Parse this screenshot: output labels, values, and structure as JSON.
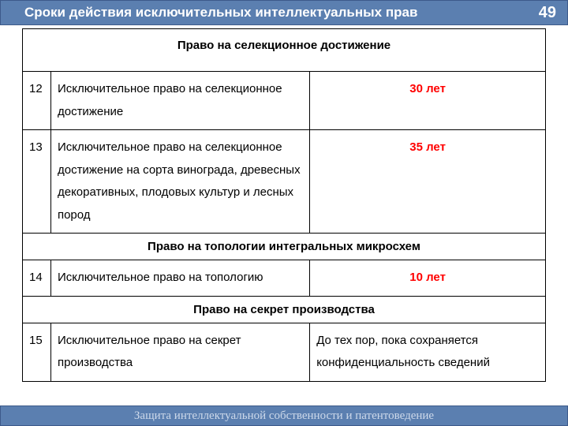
{
  "header": {
    "title": "Сроки действия исключительных интеллектуальных прав",
    "page_number": "49"
  },
  "sections": {
    "s1": "Право на селекционное достижение",
    "s2": "Право на топологии интегральных микросхем",
    "s3": "Право на секрет производства"
  },
  "rows": {
    "r12": {
      "num": "12",
      "desc": "Исключительное право на селекционное достижение",
      "dur": "30 лет"
    },
    "r13": {
      "num": "13",
      "desc": "Исключительное право на селекционное достижение  на сорта винограда, древесных декоративных,  плодовых культур и лесных пород",
      "dur": "35 лет"
    },
    "r14": {
      "num": "14",
      "desc": "Исключительное право на топологию",
      "dur": "10 лет"
    },
    "r15": {
      "num": "15",
      "desc": "Исключительное право на секрет производства",
      "dur": "До тех пор, пока сохраняется конфиденциальность сведений"
    }
  },
  "footer": {
    "text": "Защита интеллектуальной собственности и  патентоведение"
  },
  "colors": {
    "header_bg": "#5b7fb0",
    "header_border": "#3d5a8a",
    "duration_highlight": "#ff0000",
    "text": "#000000",
    "footer_text": "#cdd9ea",
    "background": "#ffffff"
  }
}
